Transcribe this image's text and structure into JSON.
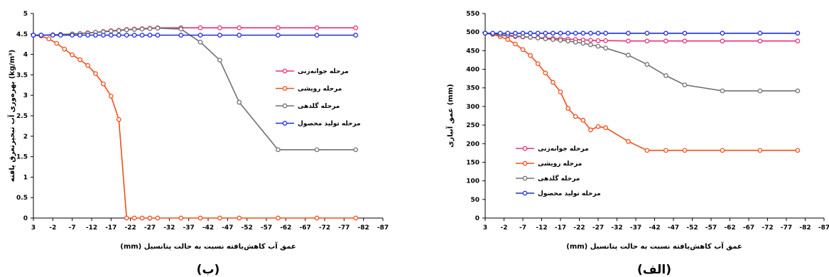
{
  "chart_data": [
    {
      "type": "line",
      "panel_label": "(ب)",
      "xlabel": "عمق آب کاهش‌یافته نسبت به حالت پتانسیل (mm)",
      "ylabel": "بهره‌وری آب تبخیرتعرق یافته (kg/m³)",
      "xlim": [
        3,
        -87
      ],
      "ylim": [
        0,
        5
      ],
      "xticks": [
        3,
        -2,
        -7,
        -12,
        -17,
        -22,
        -27,
        -32,
        -37,
        -42,
        -47,
        -52,
        -57,
        -62,
        -67,
        -72,
        -77,
        -82,
        -87
      ],
      "yticks": [
        0,
        0.5,
        1,
        1.5,
        2,
        2.5,
        3,
        3.5,
        4,
        4.5,
        5
      ],
      "ytick_labels": [
        "0",
        "0.5",
        "1",
        "1.5",
        "2",
        "2.5",
        "3",
        "3.5",
        "4",
        "4.5",
        "5"
      ],
      "legend_position": "right-middle",
      "series": [
        {
          "name": "مرحله جوانه‌زنی",
          "color": "#e8317a",
          "x": [
            3,
            1,
            -2,
            -4,
            -7,
            -9,
            -11,
            -13,
            -15,
            -17,
            -19,
            -21,
            -23,
            -25,
            -27,
            -29,
            -35,
            -40,
            -45,
            -50,
            -60,
            -70,
            -80
          ],
          "y": [
            4.47,
            4.47,
            4.48,
            4.48,
            4.5,
            4.51,
            4.53,
            4.54,
            4.56,
            4.58,
            4.59,
            4.61,
            4.62,
            4.63,
            4.64,
            4.65,
            4.65,
            4.65,
            4.65,
            4.65,
            4.65,
            4.65,
            4.65
          ]
        },
        {
          "name": "مرحله رویشی",
          "color": "#f04e1c",
          "x": [
            3,
            1,
            -1,
            -3,
            -5,
            -7,
            -9,
            -11,
            -13,
            -15,
            -17,
            -19,
            -21,
            -23,
            -25,
            -27,
            -29,
            -35,
            -40,
            -45,
            -50,
            -60,
            -70,
            -80
          ],
          "y": [
            4.47,
            4.45,
            4.38,
            4.27,
            4.13,
            3.99,
            3.87,
            3.73,
            3.53,
            3.28,
            2.98,
            2.41,
            0,
            0,
            0,
            0,
            0,
            0,
            0,
            0,
            0,
            0,
            0,
            0
          ]
        },
        {
          "name": "مرحله گلدهی",
          "color": "#707070",
          "x": [
            3,
            1,
            -2,
            -4,
            -7,
            -9,
            -11,
            -13,
            -15,
            -17,
            -19,
            -21,
            -23,
            -25,
            -27,
            -29,
            -35,
            -40,
            -45,
            -50,
            -60,
            -70,
            -80
          ],
          "y": [
            4.47,
            4.47,
            4.48,
            4.49,
            4.5,
            4.51,
            4.52,
            4.54,
            4.55,
            4.57,
            4.58,
            4.6,
            4.61,
            4.62,
            4.63,
            4.64,
            4.62,
            4.3,
            3.86,
            2.83,
            1.67,
            1.67,
            1.67
          ]
        },
        {
          "name": "مرحله تولید محصول",
          "color": "#1f2fd6",
          "x": [
            3,
            1,
            -2,
            -4,
            -7,
            -9,
            -11,
            -13,
            -15,
            -17,
            -19,
            -21,
            -23,
            -25,
            -27,
            -29,
            -35,
            -40,
            -45,
            -50,
            -60,
            -70,
            -80
          ],
          "y": [
            4.47,
            4.47,
            4.47,
            4.47,
            4.47,
            4.47,
            4.47,
            4.47,
            4.47,
            4.47,
            4.47,
            4.47,
            4.47,
            4.47,
            4.47,
            4.47,
            4.47,
            4.47,
            4.47,
            4.47,
            4.47,
            4.47,
            4.47
          ]
        }
      ]
    },
    {
      "type": "line",
      "panel_label": "(الف)",
      "xlabel": "عمق آب کاهش‌یافته نسبت به حالت پتانسیل (mm)",
      "ylabel": "عمق آبیاری (mm)",
      "xlim": [
        3,
        -87
      ],
      "ylim": [
        0,
        550
      ],
      "xticks": [
        3,
        -2,
        -7,
        -12,
        -17,
        -22,
        -27,
        -32,
        -37,
        -42,
        -47,
        -52,
        -57,
        -62,
        -67,
        -72,
        -77,
        -82,
        -87
      ],
      "yticks": [
        0,
        50,
        100,
        150,
        200,
        250,
        300,
        350,
        400,
        450,
        500,
        550
      ],
      "ytick_labels": [
        "0",
        "50",
        "100",
        "150",
        "200",
        "250",
        "300",
        "350",
        "400",
        "450",
        "500",
        "550"
      ],
      "legend_position": "left-middle",
      "series": [
        {
          "name": "مرحله جوانه‌زنی",
          "color": "#e8317a",
          "x": [
            3,
            1,
            -1,
            -3,
            -5,
            -7,
            -9,
            -11,
            -13,
            -15,
            -17,
            -19,
            -21,
            -23,
            -25,
            -27,
            -29,
            -35,
            -40,
            -45,
            -50,
            -60,
            -70,
            -80
          ],
          "y": [
            497,
            494,
            492,
            490,
            488,
            487,
            486,
            485,
            484,
            483,
            482,
            481,
            480,
            479,
            478,
            477,
            477,
            476,
            476,
            476,
            476,
            476,
            476,
            476
          ]
        },
        {
          "name": "مرحله رویشی",
          "color": "#f04e1c",
          "x": [
            3,
            1,
            -1,
            -3,
            -5,
            -7,
            -9,
            -11,
            -13,
            -15,
            -17,
            -19,
            -21,
            -23,
            -25,
            -27,
            -29,
            -35,
            -40,
            -45,
            -50,
            -60,
            -70,
            -80
          ],
          "y": [
            497,
            494,
            488,
            480,
            468,
            453,
            437,
            415,
            390,
            365,
            339,
            295,
            273,
            263,
            237,
            246,
            243,
            206,
            182,
            182,
            182,
            182,
            182,
            182
          ]
        },
        {
          "name": "مرحله گلدهی",
          "color": "#707070",
          "x": [
            3,
            1,
            -1,
            -3,
            -5,
            -7,
            -9,
            -11,
            -13,
            -15,
            -17,
            -19,
            -21,
            -23,
            -25,
            -27,
            -29,
            -35,
            -40,
            -45,
            -50,
            -60,
            -70,
            -80
          ],
          "y": [
            497,
            495,
            493,
            492,
            490,
            488,
            486,
            484,
            482,
            480,
            478,
            476,
            473,
            470,
            466,
            462,
            457,
            438,
            413,
            383,
            358,
            342,
            342,
            342
          ]
        },
        {
          "name": "مرحله تولید محصول",
          "color": "#1f2fd6",
          "x": [
            3,
            1,
            -1,
            -3,
            -5,
            -7,
            -9,
            -11,
            -13,
            -15,
            -17,
            -19,
            -21,
            -23,
            -25,
            -27,
            -29,
            -35,
            -40,
            -45,
            -50,
            -60,
            -70,
            -80
          ],
          "y": [
            497,
            497,
            497,
            497,
            497,
            497,
            497,
            497,
            497,
            497,
            497,
            497,
            497,
            497,
            497,
            497,
            497,
            497,
            497,
            497,
            497,
            497,
            497,
            497
          ]
        }
      ]
    }
  ]
}
